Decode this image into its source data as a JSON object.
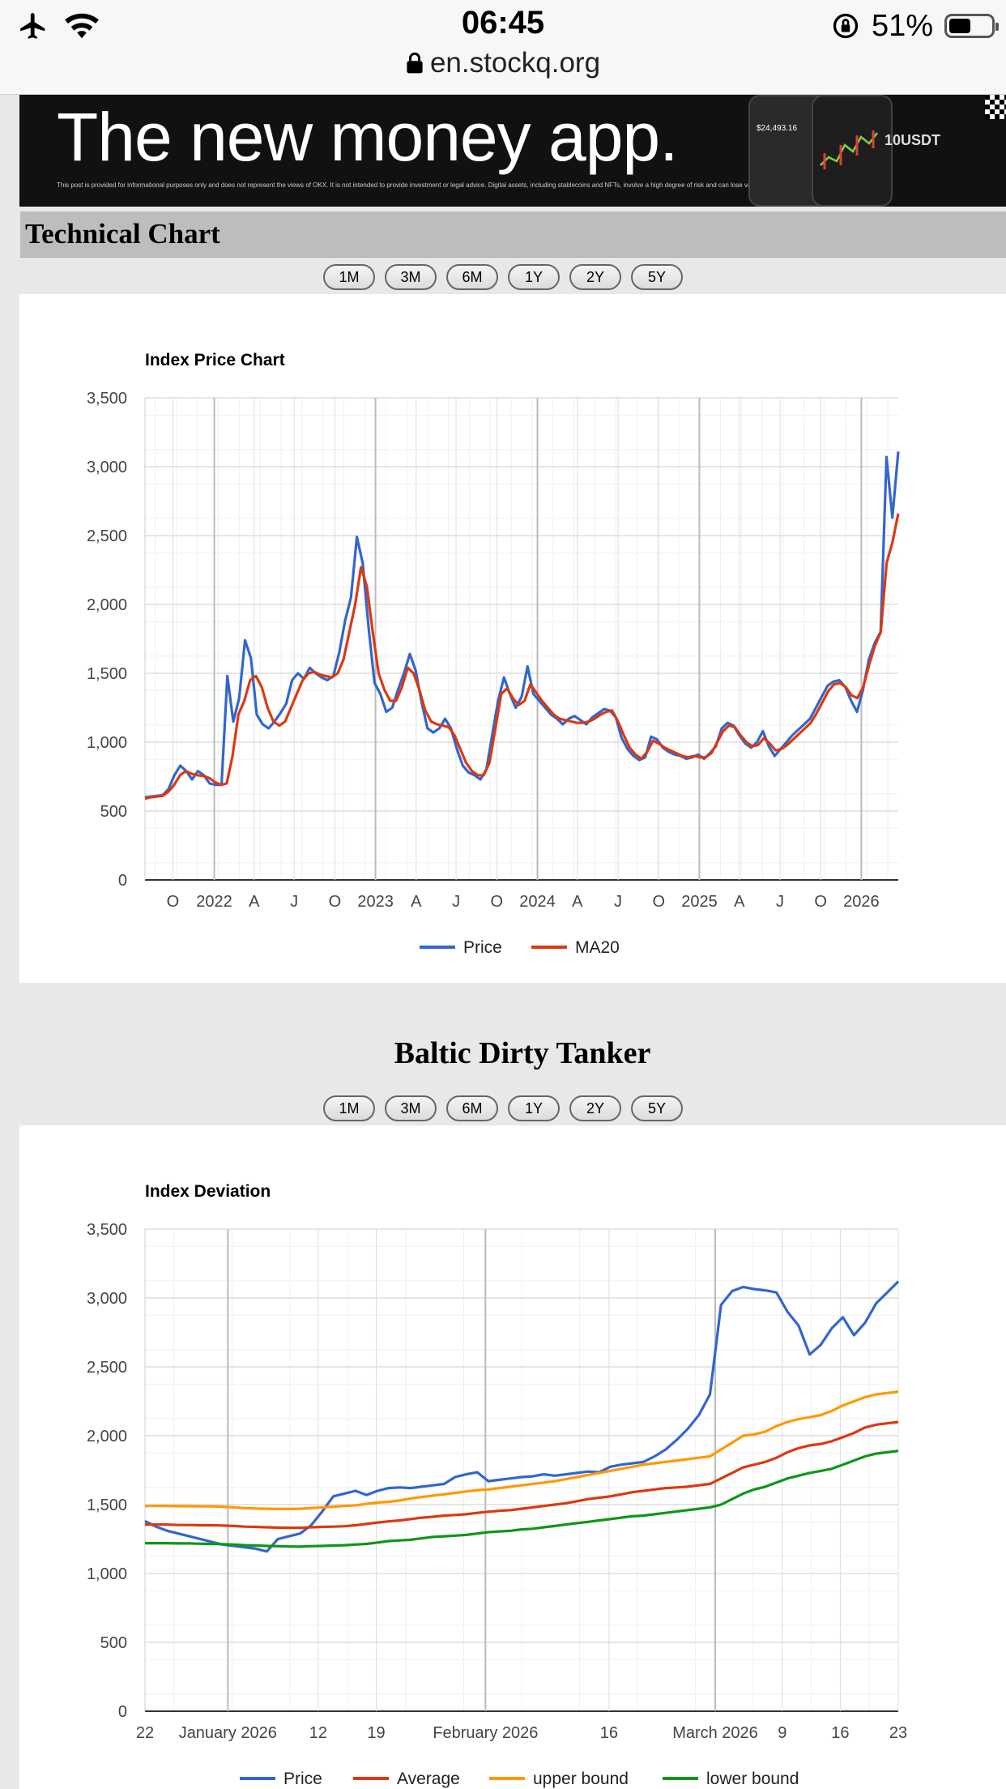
{
  "status_bar": {
    "time": "06:45",
    "battery": "51%",
    "battery_level": 0.51,
    "url": "en.stockq.org"
  },
  "ad": {
    "headline": "The new money app.",
    "fine_print": "This post is provided for informational purposes only and does not represent the views of OKX. It is not intended to provide investment or legal advice. Digital assets, including stablecoins and NFTs, involve a high degree of risk and can lose value. You should carefully consider whether trading or holding digital assets is suitable for you in light of your financial condition and risk tolerance. Not all products offered in all regions.",
    "phone_value": "$24,493.16",
    "badge": "10USDT"
  },
  "section_title": "Technical Chart",
  "range_buttons": [
    "1M",
    "3M",
    "6M",
    "1Y",
    "2Y",
    "5Y"
  ],
  "tanker_title": "Baltic Dirty Tanker",
  "colors": {
    "price": "#3366cc",
    "ma": "#dc3912",
    "upper": "#ff9900",
    "lower": "#109618"
  },
  "chart_data": [
    {
      "type": "line",
      "title": "Index Price Chart",
      "ylim": [
        0,
        3500
      ],
      "yticks": [
        "0",
        "500",
        "1,000",
        "1,500",
        "2,000",
        "2,500",
        "3,000",
        "3,500"
      ],
      "x_labels": [
        "O",
        "2022",
        "A",
        "J",
        "O",
        "2023",
        "A",
        "J",
        "O",
        "2024",
        "A",
        "J",
        "O",
        "2025",
        "A",
        "J",
        "O",
        "2026"
      ],
      "legend": "bottom",
      "series": [
        {
          "name": "Price",
          "values": [
            600,
            605,
            610,
            615,
            660,
            760,
            830,
            790,
            730,
            790,
            760,
            700,
            690,
            690,
            1480,
            1150,
            1320,
            1740,
            1610,
            1200,
            1130,
            1100,
            1150,
            1210,
            1280,
            1450,
            1500,
            1460,
            1540,
            1500,
            1470,
            1450,
            1480,
            1650,
            1880,
            2050,
            2490,
            2300,
            1830,
            1430,
            1350,
            1220,
            1250,
            1380,
            1500,
            1640,
            1520,
            1290,
            1100,
            1070,
            1100,
            1170,
            1100,
            950,
            830,
            780,
            760,
            730,
            800,
            1050,
            1300,
            1470,
            1350,
            1250,
            1330,
            1550,
            1350,
            1300,
            1250,
            1200,
            1170,
            1130,
            1170,
            1190,
            1160,
            1130,
            1180,
            1210,
            1240,
            1230,
            1180,
            1030,
            950,
            900,
            870,
            890,
            1040,
            1020,
            960,
            930,
            910,
            900,
            880,
            890,
            910,
            880,
            920,
            970,
            1100,
            1140,
            1120,
            1050,
            990,
            960,
            1000,
            1080,
            970,
            900,
            950,
            1000,
            1050,
            1090,
            1130,
            1170,
            1250,
            1330,
            1410,
            1440,
            1450,
            1400,
            1300,
            1220,
            1380,
            1600,
            1720,
            1800,
            3070,
            2630,
            3110
          ]
        },
        {
          "name": "MA20",
          "values": [
            590,
            600,
            605,
            610,
            640,
            690,
            760,
            790,
            770,
            760,
            755,
            740,
            710,
            690,
            700,
            900,
            1200,
            1300,
            1450,
            1480,
            1400,
            1250,
            1150,
            1120,
            1150,
            1250,
            1350,
            1450,
            1500,
            1510,
            1490,
            1480,
            1470,
            1500,
            1600,
            1800,
            2000,
            2270,
            2130,
            1800,
            1500,
            1380,
            1300,
            1300,
            1400,
            1540,
            1500,
            1380,
            1230,
            1150,
            1130,
            1120,
            1110,
            1050,
            950,
            850,
            790,
            760,
            760,
            850,
            1100,
            1350,
            1390,
            1320,
            1270,
            1300,
            1420,
            1360,
            1300,
            1250,
            1200,
            1170,
            1160,
            1150,
            1140,
            1140,
            1150,
            1170,
            1200,
            1220,
            1230,
            1150,
            1050,
            960,
            910,
            880,
            930,
            1010,
            990,
            960,
            940,
            920,
            900,
            890,
            900,
            890,
            890,
            920,
            1000,
            1080,
            1120,
            1110,
            1050,
            1000,
            970,
            980,
            1030,
            990,
            940,
            950,
            980,
            1020,
            1060,
            1100,
            1140,
            1210,
            1290,
            1370,
            1420,
            1430,
            1400,
            1340,
            1320,
            1400,
            1560,
            1700,
            1800,
            2300,
            2450,
            2660
          ]
        }
      ]
    },
    {
      "type": "line",
      "title": "Index Deviation",
      "ylim": [
        0,
        3500
      ],
      "yticks": [
        "0",
        "500",
        "1,000",
        "1,500",
        "2,000",
        "2,500",
        "3,000",
        "3,500"
      ],
      "x_labels": [
        "22",
        "January 2026",
        "12",
        "19",
        "February 2026",
        "16",
        "March 2026",
        "9",
        "16",
        "23"
      ],
      "legend": "bottom",
      "series": [
        {
          "name": "Price",
          "values": [
            1380,
            1340,
            1310,
            1290,
            1270,
            1250,
            1230,
            1210,
            1200,
            1190,
            1180,
            1160,
            1250,
            1270,
            1290,
            1350,
            1450,
            1560,
            1580,
            1600,
            1570,
            1600,
            1620,
            1625,
            1620,
            1630,
            1640,
            1650,
            1700,
            1720,
            1735,
            1670,
            1680,
            1690,
            1700,
            1705,
            1720,
            1710,
            1720,
            1730,
            1740,
            1735,
            1775,
            1790,
            1800,
            1810,
            1850,
            1900,
            1970,
            2050,
            2150,
            2300,
            2950,
            3050,
            3080,
            3065,
            3055,
            3040,
            2900,
            2800,
            2590,
            2660,
            2780,
            2860,
            2730,
            2820,
            2960,
            3040,
            3120
          ]
        },
        {
          "name": "Average",
          "values": [
            1355,
            1355,
            1355,
            1352,
            1352,
            1350,
            1350,
            1348,
            1345,
            1340,
            1338,
            1335,
            1333,
            1332,
            1332,
            1335,
            1338,
            1340,
            1343,
            1350,
            1360,
            1370,
            1378,
            1385,
            1395,
            1405,
            1412,
            1420,
            1425,
            1430,
            1440,
            1448,
            1455,
            1460,
            1470,
            1480,
            1490,
            1500,
            1510,
            1525,
            1540,
            1550,
            1560,
            1575,
            1590,
            1600,
            1610,
            1620,
            1625,
            1630,
            1640,
            1650,
            1690,
            1730,
            1770,
            1790,
            1810,
            1840,
            1880,
            1910,
            1930,
            1940,
            1960,
            1990,
            2020,
            2060,
            2080,
            2090,
            2100
          ]
        },
        {
          "name": "upper bound",
          "values": [
            1490,
            1490,
            1490,
            1488,
            1488,
            1487,
            1487,
            1485,
            1480,
            1475,
            1472,
            1470,
            1468,
            1468,
            1470,
            1475,
            1480,
            1485,
            1490,
            1495,
            1505,
            1515,
            1520,
            1530,
            1545,
            1555,
            1565,
            1575,
            1585,
            1595,
            1605,
            1610,
            1620,
            1630,
            1640,
            1650,
            1660,
            1670,
            1685,
            1700,
            1715,
            1730,
            1745,
            1760,
            1775,
            1790,
            1800,
            1810,
            1820,
            1830,
            1840,
            1850,
            1900,
            1950,
            2000,
            2010,
            2030,
            2070,
            2100,
            2120,
            2135,
            2150,
            2180,
            2220,
            2250,
            2280,
            2300,
            2310,
            2320
          ]
        },
        {
          "name": "lower bound",
          "values": [
            1220,
            1220,
            1220,
            1218,
            1218,
            1216,
            1215,
            1213,
            1210,
            1205,
            1203,
            1200,
            1198,
            1196,
            1195,
            1198,
            1200,
            1203,
            1205,
            1210,
            1215,
            1225,
            1235,
            1240,
            1245,
            1255,
            1265,
            1270,
            1275,
            1280,
            1290,
            1300,
            1305,
            1310,
            1320,
            1325,
            1335,
            1345,
            1355,
            1365,
            1375,
            1385,
            1395,
            1405,
            1415,
            1420,
            1430,
            1440,
            1450,
            1460,
            1470,
            1480,
            1500,
            1540,
            1580,
            1610,
            1630,
            1660,
            1690,
            1710,
            1730,
            1745,
            1760,
            1790,
            1820,
            1850,
            1870,
            1880,
            1890
          ]
        }
      ]
    }
  ]
}
